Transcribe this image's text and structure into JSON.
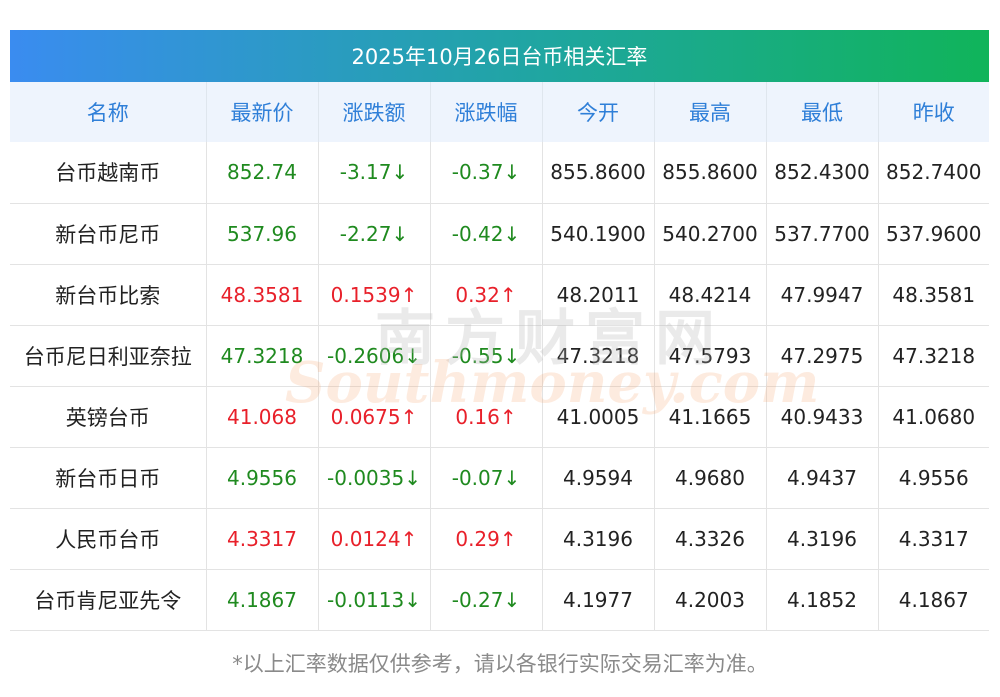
{
  "title": "2025年10月26日台币相关汇率",
  "headers": [
    "名称",
    "最新价",
    "涨跌额",
    "涨跌幅",
    "今开",
    "最高",
    "最低",
    "昨收"
  ],
  "colors": {
    "up": "#e8202a",
    "down": "#1f8a1f",
    "header_text": "#2f7fd8"
  },
  "rows": [
    {
      "name": "台币越南币",
      "latest": "852.74",
      "change": "-3.17↓",
      "pct": "-0.37↓",
      "open": "855.8600",
      "high": "855.8600",
      "low": "852.4300",
      "prev": "852.7400",
      "trend": "down"
    },
    {
      "name": "新台币尼币",
      "latest": "537.96",
      "change": "-2.27↓",
      "pct": "-0.42↓",
      "open": "540.1900",
      "high": "540.2700",
      "low": "537.7700",
      "prev": "537.9600",
      "trend": "down"
    },
    {
      "name": "新台币比索",
      "latest": "48.3581",
      "change": "0.1539↑",
      "pct": "0.32↑",
      "open": "48.2011",
      "high": "48.4214",
      "low": "47.9947",
      "prev": "48.3581",
      "trend": "up"
    },
    {
      "name": "台币尼日利亚奈拉",
      "latest": "47.3218",
      "change": "-0.2606↓",
      "pct": "-0.55↓",
      "open": "47.3218",
      "high": "47.5793",
      "low": "47.2975",
      "prev": "47.3218",
      "trend": "down"
    },
    {
      "name": "英镑台币",
      "latest": "41.068",
      "change": "0.0675↑",
      "pct": "0.16↑",
      "open": "41.0005",
      "high": "41.1665",
      "low": "40.9433",
      "prev": "41.0680",
      "trend": "up"
    },
    {
      "name": "新台币日币",
      "latest": "4.9556",
      "change": "-0.0035↓",
      "pct": "-0.07↓",
      "open": "4.9594",
      "high": "4.9680",
      "low": "4.9437",
      "prev": "4.9556",
      "trend": "down"
    },
    {
      "name": "人民币台币",
      "latest": "4.3317",
      "change": "0.0124↑",
      "pct": "0.29↑",
      "open": "4.3196",
      "high": "4.3326",
      "low": "4.3196",
      "prev": "4.3317",
      "trend": "up"
    },
    {
      "name": "台币肯尼亚先令",
      "latest": "4.1867",
      "change": "-0.0113↓",
      "pct": "-0.27↓",
      "open": "4.1977",
      "high": "4.2003",
      "low": "4.1852",
      "prev": "4.1867",
      "trend": "down"
    }
  ],
  "watermark": {
    "cn": "南方财富网",
    "en": "Southmoney.com"
  },
  "footnote": "*以上汇率数据仅供参考，请以各银行实际交易汇率为准。"
}
